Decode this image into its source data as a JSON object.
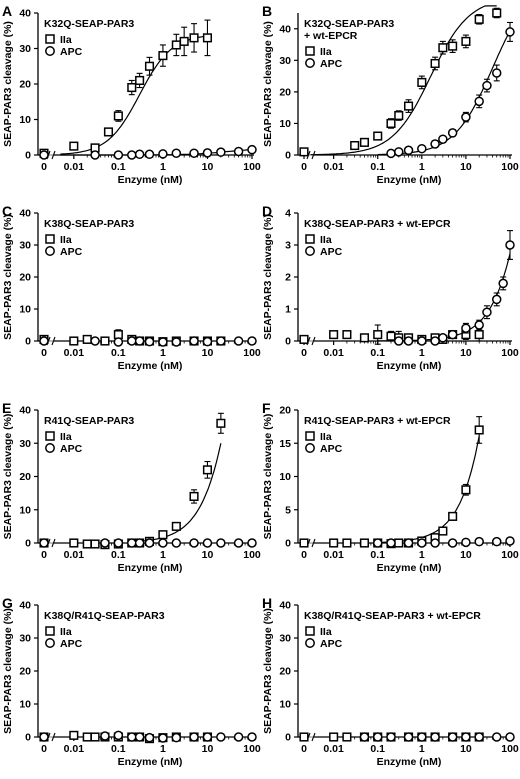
{
  "chart_data": [
    {
      "panel": "A",
      "type": "scatter",
      "title": "K32Q-SEAP-PAR3",
      "xlabel": "Enzyme (nM)",
      "ylabel": "SEAP-PAR3 cleavage (%)",
      "xscale": "log",
      "x_ticks": [
        "0",
        "0.01",
        "0.1",
        "1",
        "10",
        "100"
      ],
      "ylim": [
        0,
        40
      ],
      "y_ticks": [
        "0",
        "10",
        "20",
        "30",
        "40"
      ],
      "legend_position": "top-left",
      "series": [
        {
          "name": "IIa",
          "marker": "square",
          "fit": true,
          "x": [
            0,
            0.01,
            0.03,
            0.06,
            0.1,
            0.2,
            0.3,
            0.5,
            1,
            2,
            3,
            5,
            10
          ],
          "y": [
            0.5,
            2.5,
            2.0,
            6.5,
            11,
            19,
            21,
            25,
            28,
            31,
            32,
            33,
            33
          ],
          "err": [
            0.5,
            0.5,
            0.5,
            1,
            1.5,
            2,
            2,
            2.5,
            3,
            3,
            4,
            4,
            5
          ],
          "curve": {
            "bottom": 0,
            "top": 34,
            "ec50": 0.3,
            "hill": 1.2,
            "xmin": 0.005,
            "xmax": 10
          }
        },
        {
          "name": "APC",
          "marker": "circle",
          "fit": true,
          "x": [
            0,
            0.03,
            0.1,
            0.2,
            0.3,
            0.5,
            1,
            2,
            5,
            10,
            20,
            50,
            100
          ],
          "y": [
            0,
            0,
            0,
            0,
            0.2,
            0.2,
            0.3,
            0.5,
            0.5,
            0.6,
            0.8,
            1,
            1.5
          ],
          "curve": {
            "bottom": 0,
            "top": 2,
            "ec50": 30,
            "hill": 1,
            "xmin": 0.005,
            "xmax": 100
          }
        }
      ]
    },
    {
      "panel": "B",
      "type": "scatter",
      "title": "K32Q-SEAP-PAR3",
      "title2": "+ wt-EPCR",
      "xlabel": "Enzyme (nM)",
      "ylabel": "SEAP-PAR3 cleavage (%)",
      "xscale": "log",
      "x_ticks": [
        "0",
        "0.01",
        "0.1",
        "1",
        "10",
        "100"
      ],
      "ylim": [
        0,
        45
      ],
      "y_ticks": [
        "0",
        "10",
        "20",
        "30",
        "40"
      ],
      "legend_position": "top-left",
      "series": [
        {
          "name": "IIa",
          "marker": "square",
          "fit": true,
          "x": [
            0,
            0.03,
            0.05,
            0.1,
            0.2,
            0.3,
            0.5,
            1,
            2,
            3,
            5,
            10,
            20,
            50
          ],
          "y": [
            1,
            3,
            4,
            6,
            10,
            12.5,
            15.5,
            23,
            29,
            34,
            34.5,
            36,
            43,
            45
          ],
          "err": [
            1,
            1,
            1,
            1,
            1.5,
            1.5,
            2,
            2,
            2,
            2,
            2,
            2,
            1.5,
            1.5
          ],
          "curve": {
            "bottom": 0,
            "top": 50,
            "ec50": 1.6,
            "hill": 1,
            "xmin": 0.003,
            "xmax": 50
          }
        },
        {
          "name": "APC",
          "marker": "circle",
          "fit": true,
          "x": [
            0.2,
            0.3,
            0.5,
            1,
            2,
            3,
            5,
            10,
            20,
            30,
            50,
            100
          ],
          "y": [
            0.5,
            1,
            1.5,
            2,
            3.5,
            5,
            7,
            12,
            17,
            22,
            26,
            39
          ],
          "err": [
            0.5,
            0.5,
            0.5,
            0.5,
            1,
            1,
            1,
            1.5,
            2,
            2,
            2.5,
            3
          ],
          "curve": {
            "bottom": 0,
            "top": 55,
            "ec50": 40,
            "hill": 1,
            "xmin": 0.1,
            "xmax": 100
          }
        }
      ]
    },
    {
      "panel": "C",
      "type": "scatter",
      "title": "K38Q-SEAP-PAR3",
      "xlabel": "Enzyme (nM)",
      "ylabel": "SEAP-PAR3 cleavage (%)",
      "xscale": "log",
      "x_ticks": [
        "0",
        "0.01",
        "0.1",
        "1",
        "10",
        "100"
      ],
      "ylim": [
        0,
        40
      ],
      "y_ticks": [
        "0",
        "10",
        "20",
        "30",
        "40"
      ],
      "legend_position": "top-left",
      "series": [
        {
          "name": "IIa",
          "marker": "square",
          "fit": false,
          "x": [
            0,
            0.01,
            0.02,
            0.05,
            0.1,
            0.2,
            0.3,
            0.5,
            1,
            2,
            5,
            10,
            20
          ],
          "y": [
            0.5,
            0,
            0.5,
            0,
            2,
            0.5,
            0,
            0,
            -0.2,
            0,
            0,
            0,
            0
          ],
          "err": [
            0.5,
            0.5,
            0.5,
            0.5,
            1.5,
            0.5,
            0.5,
            0.5,
            0.5,
            0.5,
            0.5,
            0.5,
            0.5
          ]
        },
        {
          "name": "APC",
          "marker": "circle",
          "fit": false,
          "x": [
            0,
            0.03,
            0.1,
            0.2,
            0.3,
            0.5,
            1,
            2,
            5,
            10,
            20,
            50,
            100
          ],
          "y": [
            0,
            0,
            -0.3,
            0,
            0,
            -0.2,
            -0.3,
            -0.3,
            0,
            -0.2,
            0,
            0,
            0
          ]
        }
      ]
    },
    {
      "panel": "D",
      "type": "scatter",
      "title": "K38Q-SEAP-PAR3 + wt-EPCR",
      "xlabel": "Enzyme (nM)",
      "ylabel": "SEAP-PAR3 cleavage (%)",
      "xscale": "log",
      "x_ticks": [
        "0",
        "0.01",
        "0.1",
        "1",
        "10",
        "100"
      ],
      "ylim": [
        0,
        4
      ],
      "y_ticks": [
        "0",
        "1",
        "2",
        "3",
        "4"
      ],
      "legend_position": "top-left",
      "series": [
        {
          "name": "IIa",
          "marker": "square",
          "fit": false,
          "x": [
            0,
            0.01,
            0.02,
            0.05,
            0.1,
            0.2,
            0.3,
            0.5,
            1,
            2,
            3,
            5,
            10,
            20
          ],
          "y": [
            0.05,
            0.2,
            0.2,
            0.1,
            0.2,
            0.15,
            0.1,
            0.1,
            0.05,
            0.1,
            0.05,
            0.2,
            0.2,
            0.2
          ],
          "err": [
            0.05,
            0.05,
            0.05,
            0.1,
            0.3,
            0.15,
            0.2,
            0.1,
            0.1,
            0.1,
            0.1,
            0.1,
            0.15,
            0.2
          ]
        },
        {
          "name": "APC",
          "marker": "circle",
          "fit": true,
          "x": [
            0.3,
            0.5,
            1,
            2,
            3,
            5,
            10,
            20,
            30,
            50,
            70,
            100
          ],
          "y": [
            0,
            0,
            0,
            0,
            0.1,
            0.2,
            0.4,
            0.5,
            0.9,
            1.3,
            1.8,
            3.0
          ],
          "err": [
            0.05,
            0.05,
            0.05,
            0.05,
            0.05,
            0.1,
            0.15,
            0.15,
            0.2,
            0.2,
            0.2,
            0.45
          ],
          "curve": {
            "bottom": 0,
            "top": 30,
            "ec50": 1000,
            "hill": 1,
            "xmin": 0.1,
            "xmax": 100
          }
        }
      ]
    },
    {
      "panel": "E",
      "type": "scatter",
      "title": "R41Q-SEAP-PAR3",
      "xlabel": "Enzyme (nM)",
      "ylabel": "SEAP-PAR3 cleavage (%)",
      "xscale": "log",
      "x_ticks": [
        "0",
        "0.01",
        "0.1",
        "1",
        "10",
        "100"
      ],
      "ylim": [
        0,
        40
      ],
      "y_ticks": [
        "0",
        "10",
        "20",
        "30",
        "40"
      ],
      "legend_position": "top-left",
      "series": [
        {
          "name": "IIa",
          "marker": "square",
          "fit": true,
          "x": [
            0,
            0.01,
            0.02,
            0.03,
            0.05,
            0.1,
            0.2,
            0.3,
            0.5,
            1,
            2,
            5,
            10,
            20
          ],
          "y": [
            0,
            0,
            -0.3,
            -0.3,
            -0.5,
            -0.3,
            0,
            0,
            0.5,
            2.5,
            5,
            14,
            22,
            36
          ],
          "err": [
            0.5,
            0.5,
            0.5,
            0.5,
            0.5,
            0.5,
            0.5,
            0.5,
            0.5,
            1,
            1,
            2,
            2.5,
            3
          ],
          "curve": {
            "bottom": 0,
            "top": 300,
            "ec50": 180,
            "hill": 1,
            "xmin": 0.3,
            "xmax": 20
          }
        },
        {
          "name": "APC",
          "marker": "circle",
          "fit": false,
          "x": [
            0,
            0.05,
            0.1,
            0.2,
            0.3,
            0.5,
            1,
            2,
            5,
            10,
            20,
            50,
            100
          ],
          "y": [
            0,
            0,
            0,
            0,
            0,
            0,
            0,
            0,
            0,
            0,
            0,
            0,
            0
          ]
        }
      ]
    },
    {
      "panel": "F",
      "type": "scatter",
      "title": "R41Q-SEAP-PAR3 + wt-EPCR",
      "xlabel": "Enzyme (nM)",
      "ylabel": "SEAP-PAR3 cleavage (%)",
      "xscale": "log",
      "x_ticks": [
        "0",
        "0.01",
        "0.1",
        "1",
        "10",
        "100"
      ],
      "ylim": [
        0,
        20
      ],
      "y_ticks": [
        "0",
        "5",
        "10",
        "15",
        "20"
      ],
      "legend_position": "top-left",
      "series": [
        {
          "name": "IIa",
          "marker": "square",
          "fit": true,
          "x": [
            0,
            0.01,
            0.02,
            0.05,
            0.1,
            0.2,
            0.3,
            0.5,
            1,
            2,
            3,
            5,
            10,
            20
          ],
          "y": [
            0,
            0,
            0,
            0,
            0,
            -0.1,
            0,
            0,
            0.3,
            0.8,
            1.8,
            4,
            8,
            17
          ],
          "err": [
            0.3,
            0.3,
            0.3,
            0.3,
            0.3,
            0.3,
            0.3,
            0.3,
            0.3,
            0.3,
            0.4,
            0.5,
            0.8,
            2
          ],
          "curve": {
            "bottom": 0,
            "top": 500,
            "ec50": 600,
            "hill": 1,
            "xmin": 0.1,
            "xmax": 20
          }
        },
        {
          "name": "APC",
          "marker": "circle",
          "fit": false,
          "x": [
            0.1,
            0.2,
            0.5,
            1,
            2,
            5,
            10,
            20,
            50,
            100
          ],
          "y": [
            0,
            0,
            0,
            0,
            0,
            0,
            0.1,
            0.2,
            0.2,
            0.3
          ]
        }
      ]
    },
    {
      "panel": "G",
      "type": "scatter",
      "title": "K38Q/R41Q-SEAP-PAR3",
      "xlabel": "Enzyme (nM)",
      "ylabel": "SEAP-PAR3 cleavage (%)",
      "xscale": "log",
      "x_ticks": [
        "0",
        "0.01",
        "0.1",
        "1",
        "10",
        "100"
      ],
      "ylim": [
        0,
        40
      ],
      "y_ticks": [
        "0",
        "10",
        "20",
        "30",
        "40"
      ],
      "legend_position": "top-left",
      "series": [
        {
          "name": "IIa",
          "marker": "square",
          "fit": false,
          "x": [
            0,
            0.01,
            0.02,
            0.03,
            0.05,
            0.1,
            0.2,
            0.3,
            0.5,
            1,
            2,
            5,
            10
          ],
          "y": [
            0,
            0.5,
            0,
            0,
            0,
            0,
            0,
            0,
            -0.5,
            -0.2,
            0,
            0,
            0
          ],
          "err": [
            0.5,
            0.5,
            0.5,
            0.5,
            0.5,
            0.5,
            0.5,
            0.5,
            0.5,
            0.5,
            0.5,
            0.5,
            0.5
          ]
        },
        {
          "name": "APC",
          "marker": "circle",
          "fit": false,
          "x": [
            0,
            0.05,
            0.1,
            0.2,
            0.3,
            0.5,
            1,
            2,
            5,
            10,
            20,
            50,
            100
          ],
          "y": [
            0,
            0.3,
            0.5,
            0,
            0,
            -0.2,
            -0.3,
            -0.2,
            0,
            0,
            0,
            0,
            0
          ]
        }
      ]
    },
    {
      "panel": "H",
      "type": "scatter",
      "title": "K38Q/R41Q-SEAP-PAR3 + wt-EPCR",
      "xlabel": "Enzyme (nM)",
      "ylabel": "SEAP-PAR3 cleavage (%)",
      "xscale": "log",
      "x_ticks": [
        "0",
        "0.01",
        "0.1",
        "1",
        "10",
        "100"
      ],
      "ylim": [
        0,
        40
      ],
      "y_ticks": [
        "0",
        "10",
        "20",
        "30",
        "40"
      ],
      "legend_position": "top-left",
      "series": [
        {
          "name": "IIa",
          "marker": "square",
          "fit": false,
          "x": [
            0,
            0.01,
            0.02,
            0.05,
            0.1,
            0.2,
            0.5,
            1,
            2,
            5,
            10,
            20
          ],
          "y": [
            0,
            0,
            0,
            0,
            0,
            0,
            0,
            0,
            0,
            0,
            0,
            0
          ],
          "err": [
            0.3,
            0.3,
            0.3,
            0.3,
            0.3,
            0.3,
            0.3,
            0.3,
            0.3,
            0.3,
            0.3,
            0.3
          ]
        },
        {
          "name": "APC",
          "marker": "circle",
          "fit": false,
          "x": [
            0.05,
            0.1,
            0.2,
            0.5,
            1,
            2,
            5,
            10,
            20,
            50,
            100
          ],
          "y": [
            0,
            0,
            0,
            0,
            0,
            0,
            0,
            0,
            0,
            0,
            0
          ]
        }
      ]
    }
  ]
}
